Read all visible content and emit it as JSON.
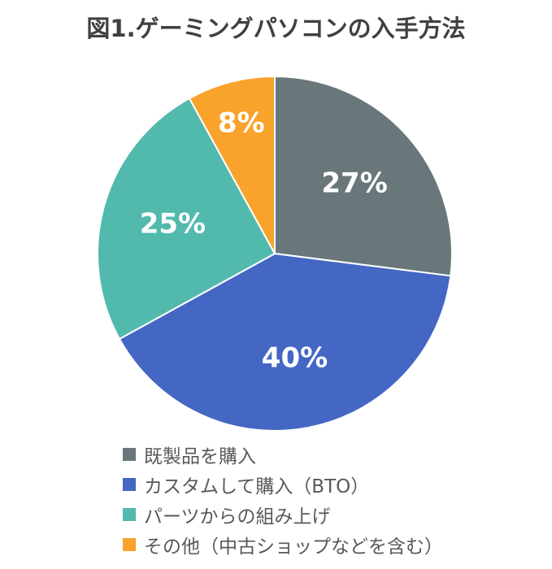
{
  "chart_data": {
    "type": "pie",
    "title_prefix": "図1.",
    "title_main": "ゲーミングパソコンの入手方法",
    "categories": [
      "既製品を購入",
      "カスタムして購入（BTO）",
      "パーツからの組み上げ",
      "その他（中古ショップなどを含む）"
    ],
    "values": [
      27,
      40,
      25,
      8
    ],
    "data_labels": [
      "27%",
      "40%",
      "25%",
      "8%"
    ],
    "colors": [
      "#69777b",
      "#4467c4",
      "#52b9ad",
      "#f9a22c"
    ],
    "legend_position": "bottom",
    "start_angle": "12 o'clock",
    "direction": "clockwise"
  }
}
